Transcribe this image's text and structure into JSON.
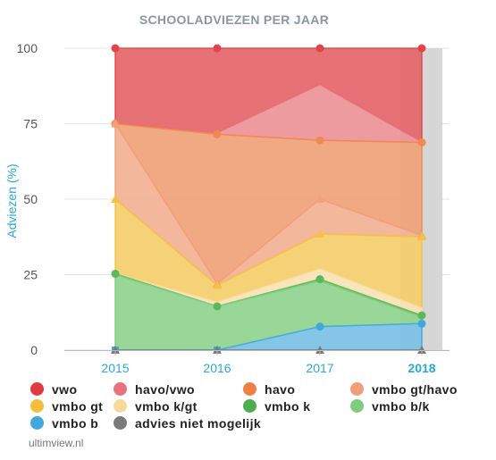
{
  "chart_data": {
    "type": "area",
    "title": "SCHOOLADVIEZEN PER JAAR",
    "ylabel": "Adviezen (%)",
    "xlabel": "",
    "categories": [
      "2015",
      "2016",
      "2017",
      "2018"
    ],
    "highlight_category": "2018",
    "ylim": [
      0,
      100
    ],
    "yticks": [
      "0",
      "25",
      "50",
      "75",
      "100"
    ],
    "stacked_cumulative": true,
    "series": [
      {
        "name": "vwo",
        "color": "#e24549",
        "fill": "#e5666a",
        "cumulative": [
          100,
          100,
          100,
          100
        ]
      },
      {
        "name": "havo/vwo",
        "color": "#e8737b",
        "fill": "#eb9297",
        "cumulative": [
          75,
          72,
          88,
          69
        ]
      },
      {
        "name": "havo",
        "color": "#f08a50",
        "fill": "#f0a278",
        "cumulative": [
          75,
          71.5,
          69.5,
          68.8
        ]
      },
      {
        "name": "vmbo gt/havo",
        "color": "#f3a07c",
        "fill": "#f2b192",
        "cumulative": [
          75,
          22,
          50,
          38
        ]
      },
      {
        "name": "vmbo gt",
        "color": "#f5c142",
        "fill": "#f4cd6c",
        "cumulative": [
          50,
          21.5,
          38.5,
          37.5
        ]
      },
      {
        "name": "vmbo k/gt",
        "color": "#fbdb95",
        "fill": "#f9e3b5",
        "cumulative": [
          25.5,
          16,
          27,
          14
        ]
      },
      {
        "name": "vmbo k",
        "color": "#5cb85c",
        "fill": "#7dc77d",
        "cumulative": [
          25.3,
          14.5,
          23.5,
          11.5
        ]
      },
      {
        "name": "vmbo b/k",
        "color": "#7fcc7f",
        "fill": "#8fd48f",
        "cumulative": [
          25,
          14.5,
          23,
          11
        ]
      },
      {
        "name": "vmbo b",
        "color": "#3fa9de",
        "fill": "#79c0e6",
        "cumulative": [
          0,
          0,
          7.8,
          8.8
        ]
      },
      {
        "name": "advies niet mogelijk",
        "color": "#7a7a7a",
        "fill": "#7a7a7a",
        "cumulative": [
          0,
          0,
          0,
          0
        ]
      }
    ]
  },
  "legend_rows": [
    [
      {
        "label": "vwo",
        "color": "#e23b3f"
      },
      {
        "label": "havo/vwo",
        "color": "#e8737b"
      },
      {
        "label": "havo",
        "color": "#f07f45"
      },
      {
        "label": "vmbo gt/havo",
        "color": "#f09d7a"
      }
    ],
    [
      {
        "label": "vmbo gt",
        "color": "#f5bd3b"
      },
      {
        "label": "vmbo k/gt",
        "color": "#fad89a"
      },
      {
        "label": "vmbo k",
        "color": "#4cae4c"
      },
      {
        "label": "vmbo b/k",
        "color": "#7fcc7f"
      }
    ],
    [
      {
        "label": "vmbo b",
        "color": "#3fa9de"
      },
      {
        "label": "advies niet mogelijk",
        "color": "#7a7a7a"
      }
    ]
  ],
  "footer": {
    "credit": "ultimview.nl"
  }
}
